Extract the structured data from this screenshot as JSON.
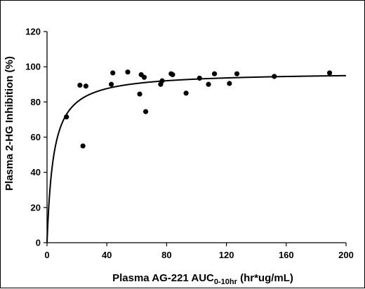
{
  "chart_data": {
    "type": "scatter",
    "title": "",
    "xlabel": {
      "main": "Plasma AG-221 AUC",
      "subscript": "0-10hr",
      "suffix": " (hr*ug/mL)"
    },
    "ylabel": "Plasma 2-HG Inhibition (%)",
    "xlim": [
      0,
      200
    ],
    "ylim": [
      0,
      120
    ],
    "xticks": [
      "0",
      "40",
      "80",
      "120",
      "160",
      "200"
    ],
    "yticks": [
      "0",
      "20",
      "40",
      "60",
      "80",
      "100",
      "120"
    ],
    "grid": false,
    "legend": "none",
    "marker_color": "#000000",
    "line_color": "#000000",
    "series": [
      {
        "kind": "points",
        "x": [
          13,
          22,
          24,
          26,
          43,
          44,
          54,
          62,
          63,
          65,
          66,
          76,
          77,
          83,
          84,
          93,
          102,
          108,
          112,
          122,
          127,
          152,
          189
        ],
        "y": [
          71.5,
          89.5,
          55,
          89,
          90,
          96.5,
          97,
          84.5,
          95.5,
          94,
          74.5,
          90,
          92,
          96,
          95.5,
          85,
          93.5,
          90,
          96,
          90.5,
          96,
          94.5,
          96.5
        ]
      },
      {
        "kind": "fit-curve",
        "model": "Emax",
        "emax": 97,
        "ec50": 4.3
      }
    ]
  }
}
